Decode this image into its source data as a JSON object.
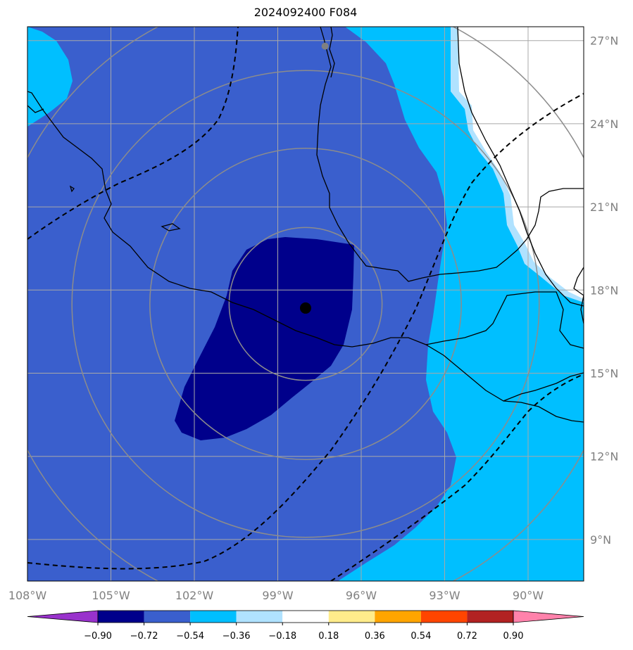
{
  "title": "2024092400 F084",
  "map": {
    "lon_range": [
      -108.0,
      -88.0
    ],
    "lat_range": [
      7.5,
      27.5
    ],
    "lon_ticks": [
      {
        "value": -108,
        "label": "108°W"
      },
      {
        "value": -105,
        "label": "105°W"
      },
      {
        "value": -102,
        "label": "102°W"
      },
      {
        "value": -99,
        "label": "99°W"
      },
      {
        "value": -96,
        "label": "96°W"
      },
      {
        "value": -93,
        "label": "93°W"
      },
      {
        "value": -90,
        "label": "90°W"
      }
    ],
    "lat_ticks": [
      {
        "value": 9,
        "label": "9°N"
      },
      {
        "value": 12,
        "label": "12°N"
      },
      {
        "value": 15,
        "label": "15°N"
      },
      {
        "value": 18,
        "label": "18°N"
      },
      {
        "value": 21,
        "label": "21°N"
      },
      {
        "value": 24,
        "label": "24°N"
      },
      {
        "value": 27,
        "label": "27°N"
      }
    ],
    "grid": true,
    "center_marker": {
      "lon": -98.0,
      "lat": 17.35,
      "color": "#000000"
    },
    "secondary_marker": {
      "lon": -97.3,
      "lat": 26.8,
      "color": "#808080"
    },
    "range_rings_deg": [
      2.75,
      5.6,
      8.4,
      11.3
    ]
  },
  "colorbar": {
    "boundaries": [
      "−0.90",
      "−0.72",
      "−0.54",
      "−0.36",
      "−0.18",
      "0.18",
      "0.36",
      "0.54",
      "0.72",
      "0.90"
    ],
    "colors": [
      "#9932cc",
      "#00008b",
      "#3a5fcd",
      "#00bfff",
      "#b0e2ff",
      "#ffffff",
      "#ffec8b",
      "#ffa500",
      "#ff4500",
      "#b22222",
      "#ff82ab"
    ]
  },
  "field_colors": {
    "level_072_054": "#3a5fcd",
    "level_090_072": "#00008b",
    "level_054_036": "#00bfff",
    "level_036_018": "#b0e2ff",
    "neutral": "#ffffff"
  }
}
